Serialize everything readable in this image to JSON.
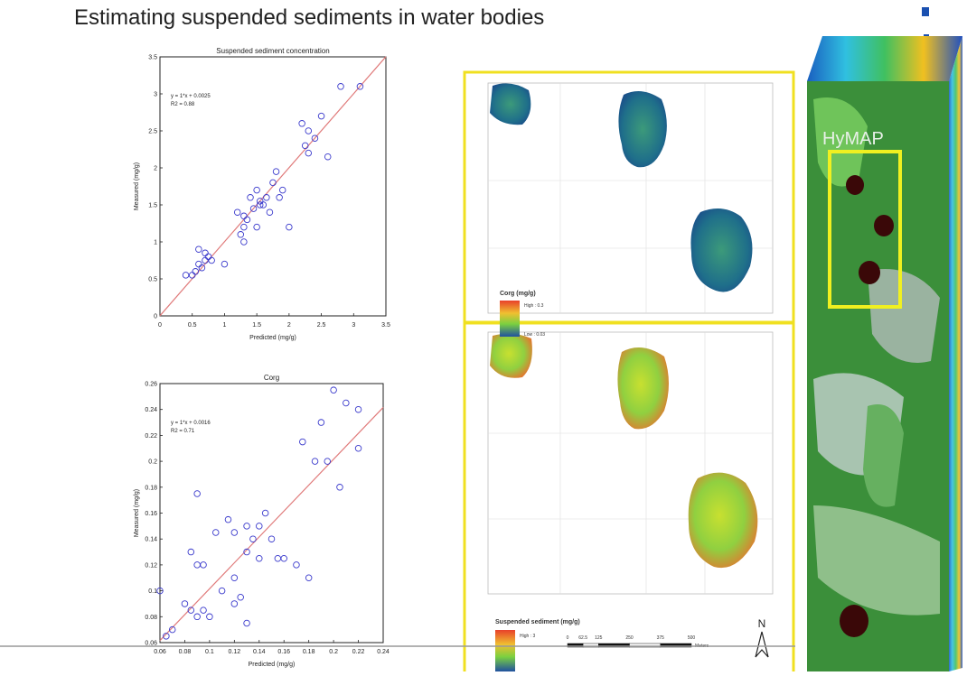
{
  "title": "Estimating suspended sediments in water bodies",
  "chart_data": [
    {
      "type": "scatter",
      "title": "Suspended sediment concentration",
      "xlabel": "Predicted (mg/g)",
      "ylabel": "Measured (mg/g)",
      "annotations": [
        "y = 1*x + 0.0025",
        "R2 = 0.88"
      ],
      "color": "#3a3acc",
      "x": [
        0.4,
        0.5,
        0.55,
        0.6,
        0.6,
        0.65,
        0.7,
        0.75,
        0.8,
        1.0,
        1.2,
        1.25,
        1.3,
        1.3,
        1.35,
        1.4,
        1.5,
        1.5,
        1.55,
        1.6,
        1.65,
        1.7,
        1.75,
        1.8,
        1.85,
        1.9,
        2.0,
        2.2,
        2.25,
        2.3,
        2.3,
        2.4,
        2.5,
        2.6,
        2.8,
        3.1,
        1.55,
        1.45,
        1.3,
        0.7
      ],
      "y": [
        0.55,
        0.55,
        0.6,
        0.7,
        0.9,
        0.65,
        0.75,
        0.8,
        0.75,
        0.7,
        1.4,
        1.1,
        1.2,
        1.0,
        1.3,
        1.6,
        1.7,
        1.2,
        1.5,
        1.5,
        1.6,
        1.4,
        1.8,
        1.95,
        1.6,
        1.7,
        1.2,
        2.6,
        2.3,
        2.5,
        2.2,
        2.4,
        2.7,
        2.15,
        3.1,
        3.1,
        1.55,
        1.45,
        1.35,
        0.85
      ],
      "fit": {
        "x": [
          0,
          3.5
        ],
        "y": [
          0.0025,
          3.5025
        ],
        "color": "#e07a7a"
      },
      "xlim": [
        0,
        3.5
      ],
      "ylim": [
        0,
        3.5
      ],
      "xticks": [
        0,
        0.5,
        1,
        1.5,
        2,
        2.5,
        3,
        3.5
      ],
      "yticks": [
        0,
        0.5,
        1,
        1.5,
        2,
        2.5,
        3,
        3.5
      ]
    },
    {
      "type": "scatter",
      "title": "Corg",
      "xlabel": "Predicted (mg/g)",
      "ylabel": "Measured (mg/g)",
      "annotations": [
        "y = 1*x + 0.0016",
        "R2 = 0.71"
      ],
      "color": "#3a3acc",
      "x": [
        0.065,
        0.07,
        0.06,
        0.08,
        0.085,
        0.09,
        0.095,
        0.1,
        0.085,
        0.09,
        0.095,
        0.09,
        0.105,
        0.11,
        0.12,
        0.12,
        0.125,
        0.115,
        0.12,
        0.13,
        0.13,
        0.135,
        0.14,
        0.14,
        0.145,
        0.15,
        0.155,
        0.16,
        0.17,
        0.175,
        0.18,
        0.185,
        0.19,
        0.195,
        0.2,
        0.205,
        0.21,
        0.22,
        0.22,
        0.13
      ],
      "y": [
        0.065,
        0.07,
        0.1,
        0.09,
        0.085,
        0.08,
        0.085,
        0.08,
        0.13,
        0.12,
        0.12,
        0.175,
        0.145,
        0.1,
        0.09,
        0.11,
        0.095,
        0.155,
        0.145,
        0.15,
        0.13,
        0.14,
        0.125,
        0.15,
        0.16,
        0.14,
        0.125,
        0.125,
        0.12,
        0.215,
        0.11,
        0.2,
        0.23,
        0.2,
        0.255,
        0.18,
        0.245,
        0.24,
        0.21,
        0.075
      ],
      "fit": {
        "x": [
          0.06,
          0.24
        ],
        "y": [
          0.0616,
          0.2416
        ],
        "color": "#e07a7a"
      },
      "xlim": [
        0.06,
        0.24
      ],
      "ylim": [
        0.06,
        0.26
      ],
      "xticks": [
        0.06,
        0.08,
        0.1,
        0.12,
        0.14,
        0.16,
        0.18,
        0.2,
        0.22,
        0.24
      ],
      "yticks": [
        0.06,
        0.08,
        0.1,
        0.12,
        0.14,
        0.16,
        0.18,
        0.2,
        0.22,
        0.24,
        0.26
      ]
    }
  ],
  "maps": {
    "top": {
      "legend_title": "Corg (mg/g)",
      "high": "High : 0.3",
      "low": "Low : 0.03"
    },
    "bottom": {
      "legend_title": "Suspended sediment (mg/g)",
      "high": "High : 3",
      "scale": [
        "0",
        "62.5",
        "125",
        "250",
        "375",
        "500"
      ],
      "unit": "Meters",
      "north": "N"
    }
  },
  "image": {
    "label": "HyMAP"
  }
}
